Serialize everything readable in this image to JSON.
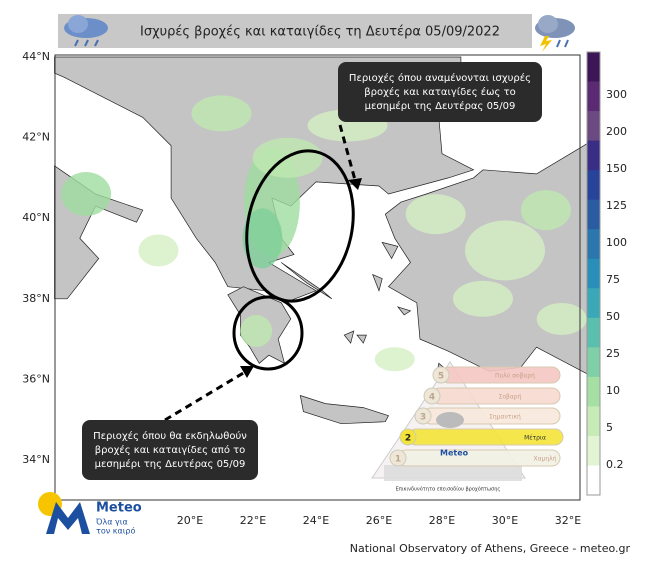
{
  "header": {
    "title": "Ισχυρές βροχές και καταιγίδες τη Δευτέρα 05/09/2022"
  },
  "axes": {
    "latitude_labels": [
      "44°N",
      "42°N",
      "40°N",
      "38°N",
      "36°N",
      "34°N"
    ],
    "longitude_labels": [
      "20°E",
      "22°E",
      "24°E",
      "26°E",
      "28°E",
      "30°E",
      "32°E"
    ]
  },
  "colorbar": {
    "labels": [
      300,
      200,
      150,
      125,
      100,
      75,
      50,
      25,
      10,
      5,
      0.2
    ]
  },
  "annotations": {
    "upper": {
      "lines": [
        "Περιοχές όπου αναμένονται ισχυρές",
        "βροχές και καταιγίδες  έως το",
        "μεσημέρι της Δευτέρας 05/09"
      ]
    },
    "lower": {
      "lines": [
        "Περιοχές όπου θα εκδηλωθούν",
        "βροχές και καταιγίδες από το",
        "μεσημέρι της Δευτέρας  05/09"
      ]
    }
  },
  "risk_legend": {
    "levels": [
      {
        "number": 5,
        "label": "Πολύ σοβαρή"
      },
      {
        "number": 4,
        "label": "Σοβαρή"
      },
      {
        "number": 3,
        "label": "Σημαντική"
      },
      {
        "number": 2,
        "label": "Μέτρια"
      },
      {
        "number": 1,
        "label": "Χαμηλή"
      }
    ],
    "brand": "Meteo",
    "caption": "Επικινδυνότητα επεισοδίου βροχόπτωσης"
  },
  "logo": {
    "name": "Meteo",
    "tagline": [
      "Όλα για",
      "τον καιρό"
    ]
  },
  "footer": {
    "credit": "National Observatory of Athens, Greece - meteo.gr"
  }
}
